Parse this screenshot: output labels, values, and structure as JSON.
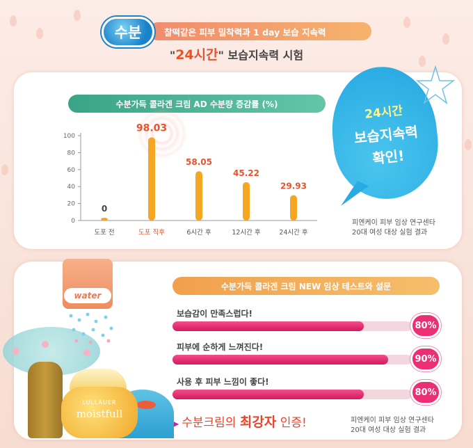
{
  "header": {
    "badge": "수분",
    "subtitle": "찰떡같은 피부 밀착력과 1 day 보습 지속력",
    "title_open_quote": "\"",
    "title_highlight": "24시간",
    "title_close_quote": "\"",
    "title_rest": "보습지속력 시험"
  },
  "chart_section": {
    "pill": "수분가득 콜라겐 크림 AD 수분량 증감률 (%)",
    "note_line1": "피엔케이 피부 임상 연구센타",
    "note_line2": "20대 여성 대상 실험 결과"
  },
  "bubble": {
    "line1": "24시간",
    "line2": "보습지속력",
    "line3": "확인!"
  },
  "chart_data": {
    "type": "bar",
    "categories": [
      "도포 전",
      "도포 직후",
      "6시간 후",
      "12시간 후",
      "24시간 후"
    ],
    "values": [
      0,
      98.03,
      58.05,
      45.22,
      29.93
    ],
    "value_labels": [
      "0",
      "98.03",
      "58.05",
      "45.22",
      "29.93"
    ],
    "yticks": [
      "0",
      "20",
      "40",
      "60",
      "80",
      "100"
    ],
    "ylim": [
      0,
      100
    ],
    "title": "수분가득 콜라겐 크림 AD 수분량 증감률 (%)",
    "bar_color": "#f5a623",
    "label_color": "#e9532b",
    "highlight_category_color": "#e9532b",
    "grid": false
  },
  "survey": {
    "pill": "수분가득 콜라겐 크림 NEW 임상 테스트와 설문",
    "items": [
      {
        "label": "보습감이 만족스럽다!",
        "percent": 80,
        "percent_label": "80%"
      },
      {
        "label": "피부에 순하게 느껴진다!",
        "percent": 90,
        "percent_label": "90%"
      },
      {
        "label": "사용 후 피부 느낌이 좋다!",
        "percent": 80,
        "percent_label": "80%"
      }
    ],
    "claim_prefix": "수분크림의 ",
    "claim_strong": "최강자",
    "claim_suffix": " 인증!",
    "note_line1": "피엔케이 피부 임상 연구센타",
    "note_line2": "20대 여성 대상 실험 결과"
  },
  "product": {
    "can_label": "water",
    "brand": "LULLAUER",
    "name": "moistfull"
  },
  "colors": {
    "accent_pink": "#ea2f74",
    "accent_orange": "#f5a623",
    "green_pill": "#3aa487",
    "bubble_blue": "#2aaae2"
  }
}
